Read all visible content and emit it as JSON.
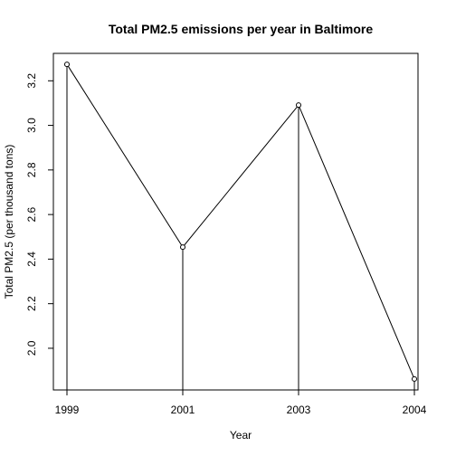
{
  "chart_data": {
    "type": "line",
    "title": "Total PM2.5 emissions per year in Baltimore",
    "xlabel": "Year",
    "ylabel": "Total PM2.5 (per thousand tons)",
    "categories": [
      "1999",
      "2001",
      "2003",
      "2004"
    ],
    "values": [
      3.274,
      2.454,
      3.091,
      1.862
    ],
    "yticks": [
      2.0,
      2.2,
      2.4,
      2.6,
      2.8,
      3.0,
      3.2
    ],
    "ylim": [
      1.813,
      3.323
    ],
    "grid": false,
    "style": "line with points and vertical drop lines",
    "colors": {
      "line": "#000000",
      "background": "#ffffff"
    }
  }
}
